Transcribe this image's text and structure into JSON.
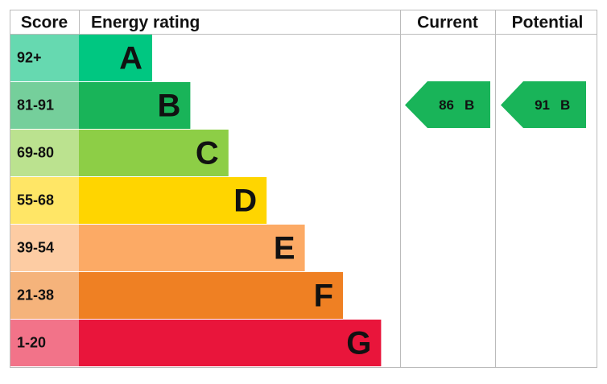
{
  "header": {
    "score": "Score",
    "rating": "Energy rating",
    "current": "Current",
    "potential": "Potential"
  },
  "bands": [
    {
      "score": "92+",
      "letter": "A",
      "color": "#00c781",
      "score_color": "#66d9b0"
    },
    {
      "score": "81-91",
      "letter": "B",
      "color": "#19b459",
      "score_color": "#75cf9b"
    },
    {
      "score": "69-80",
      "letter": "C",
      "color": "#8dce46",
      "score_color": "#bbe28f"
    },
    {
      "score": "55-68",
      "letter": "D",
      "color": "#ffd500",
      "score_color": "#ffe666"
    },
    {
      "score": "39-54",
      "letter": "E",
      "color": "#fcaa65",
      "score_color": "#fdcca3"
    },
    {
      "score": "21-38",
      "letter": "F",
      "color": "#ef8023",
      "score_color": "#f5b37b"
    },
    {
      "score": "1-20",
      "letter": "G",
      "color": "#e9153b",
      "score_color": "#f27389"
    }
  ],
  "current": {
    "value": 86,
    "letter": "B"
  },
  "potential": {
    "value": 91,
    "letter": "B"
  }
}
